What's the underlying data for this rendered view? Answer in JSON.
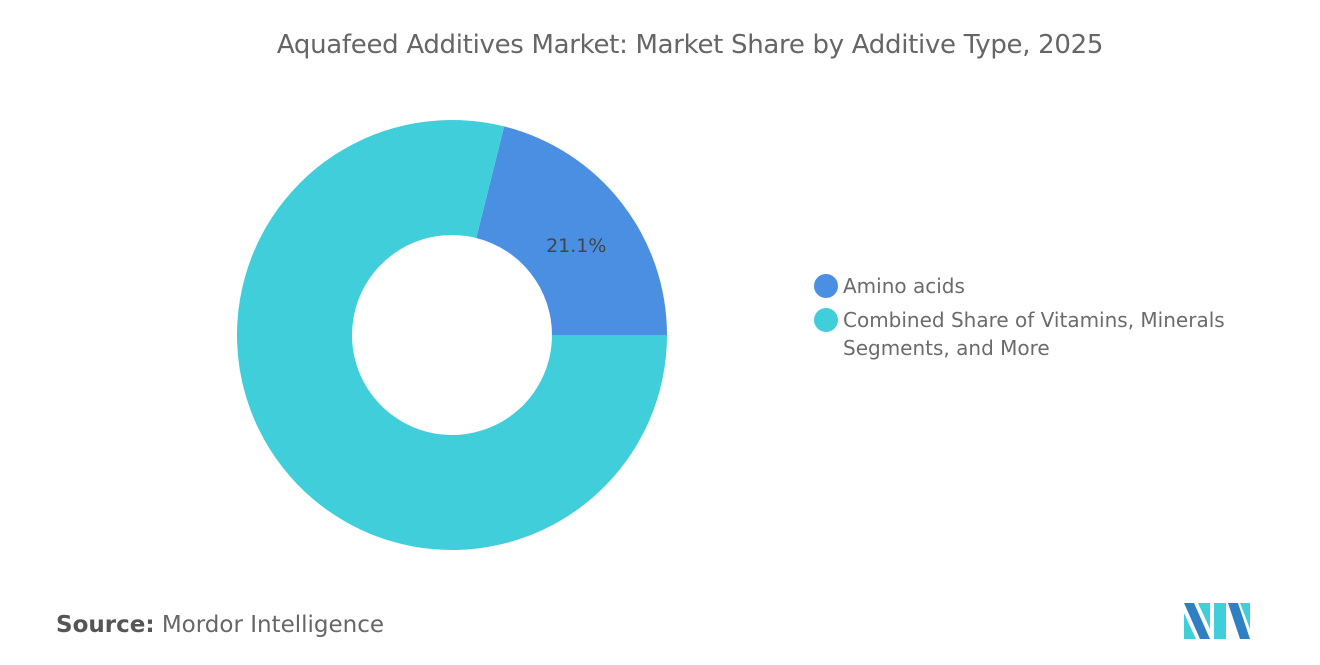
{
  "chart_data": {
    "type": "pie",
    "variant": "donut",
    "title": "Aquafeed Additives Market: Market Share by Additive Type, 2025",
    "slices": [
      {
        "label": "Amino acids",
        "value": 21.1,
        "data_label": "21.1%",
        "color": "#4a8fe2"
      },
      {
        "label": "Combined Share of Vitamins, Minerals Segments, and More",
        "value": 78.9,
        "data_label": "",
        "color": "#40cfda"
      }
    ],
    "legend_position": "right"
  },
  "footer": {
    "source_label": "Source:",
    "source_value": "Mordor Intelligence",
    "logo_text": "Mordor Intelligence logo"
  }
}
